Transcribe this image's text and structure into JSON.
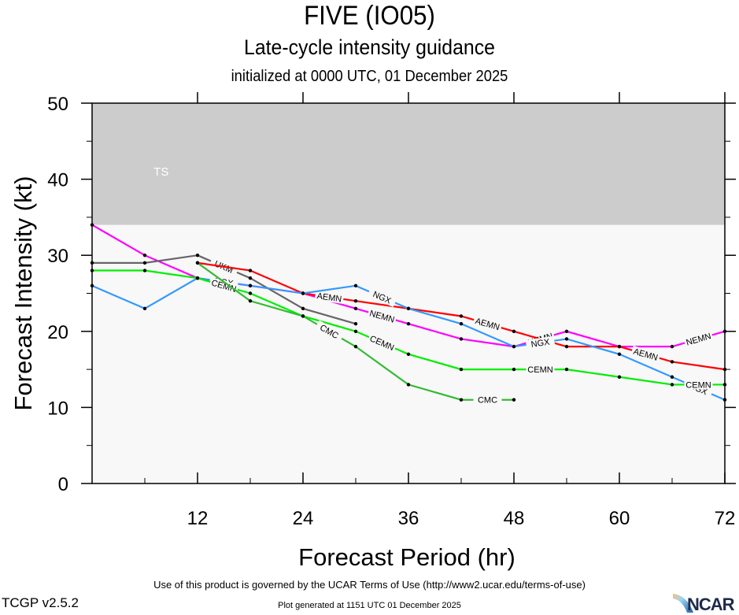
{
  "header": {
    "title": "FIVE (IO05)",
    "subtitle": "Late-cycle intensity guidance",
    "initialized": "initialized at 0000 UTC, 01 December 2025"
  },
  "footer": {
    "terms": "Use of this product is governed by the UCAR Terms of Use (http://www2.ucar.edu/terms-of-use)",
    "generated": "Plot generated at 1151 UTC   01 December 2025",
    "version": "TCGP v2.5.2",
    "logo": "NCAR"
  },
  "chart_data": {
    "type": "line",
    "title": "FIVE (IO05)",
    "xlabel": "Forecast Period (hr)",
    "ylabel": "Forecast Intensity (kt)",
    "xlim": [
      0,
      72
    ],
    "ylim": [
      0,
      50
    ],
    "xticks": [
      12,
      24,
      36,
      48,
      60,
      72
    ],
    "yticks": [
      0,
      10,
      20,
      30,
      40,
      50
    ],
    "grid": false,
    "bands": [
      {
        "label": "TS",
        "from": 34,
        "to": 50,
        "color": "#cccccc"
      }
    ],
    "background_color": "#f8f8f8",
    "series": [
      {
        "name": "NEMN",
        "color": "#ff00ff",
        "x": [
          0,
          6,
          12,
          18,
          24,
          30,
          36,
          42,
          48,
          54,
          60,
          66,
          72
        ],
        "y": [
          34,
          30,
          27,
          26,
          25,
          23,
          21,
          19,
          18,
          20,
          18,
          18,
          20
        ]
      },
      {
        "name": "UKM",
        "color": "#666666",
        "x": [
          0,
          6,
          12,
          18,
          24,
          30
        ],
        "y": [
          29,
          29,
          30,
          27,
          23,
          21
        ]
      },
      {
        "name": "AEMN",
        "color": "#ff0000",
        "x": [
          12,
          18,
          24,
          30,
          36,
          42,
          48,
          54,
          60,
          66,
          72
        ],
        "y": [
          29,
          28,
          25,
          24,
          23,
          22,
          20,
          18,
          18,
          16,
          15
        ]
      },
      {
        "name": "NGX",
        "color": "#3399ff",
        "x": [
          0,
          6,
          12,
          18,
          24,
          30,
          36,
          42,
          48,
          54,
          60,
          66,
          72
        ],
        "y": [
          26,
          23,
          27,
          26,
          25,
          26,
          23,
          21,
          18,
          19,
          17,
          14,
          11
        ]
      },
      {
        "name": "CEMN",
        "color": "#00ee00",
        "x": [
          0,
          6,
          12,
          18,
          24,
          30,
          36,
          42,
          48,
          54,
          60,
          66,
          72
        ],
        "y": [
          28,
          28,
          27,
          25,
          22,
          20,
          17,
          15,
          15,
          15,
          14,
          13,
          13
        ]
      },
      {
        "name": "CMC",
        "color": "#33bb33",
        "x": [
          12,
          18,
          24,
          30,
          36,
          42,
          48
        ],
        "y": [
          29,
          24,
          22,
          18,
          13,
          11,
          11
        ]
      }
    ]
  }
}
